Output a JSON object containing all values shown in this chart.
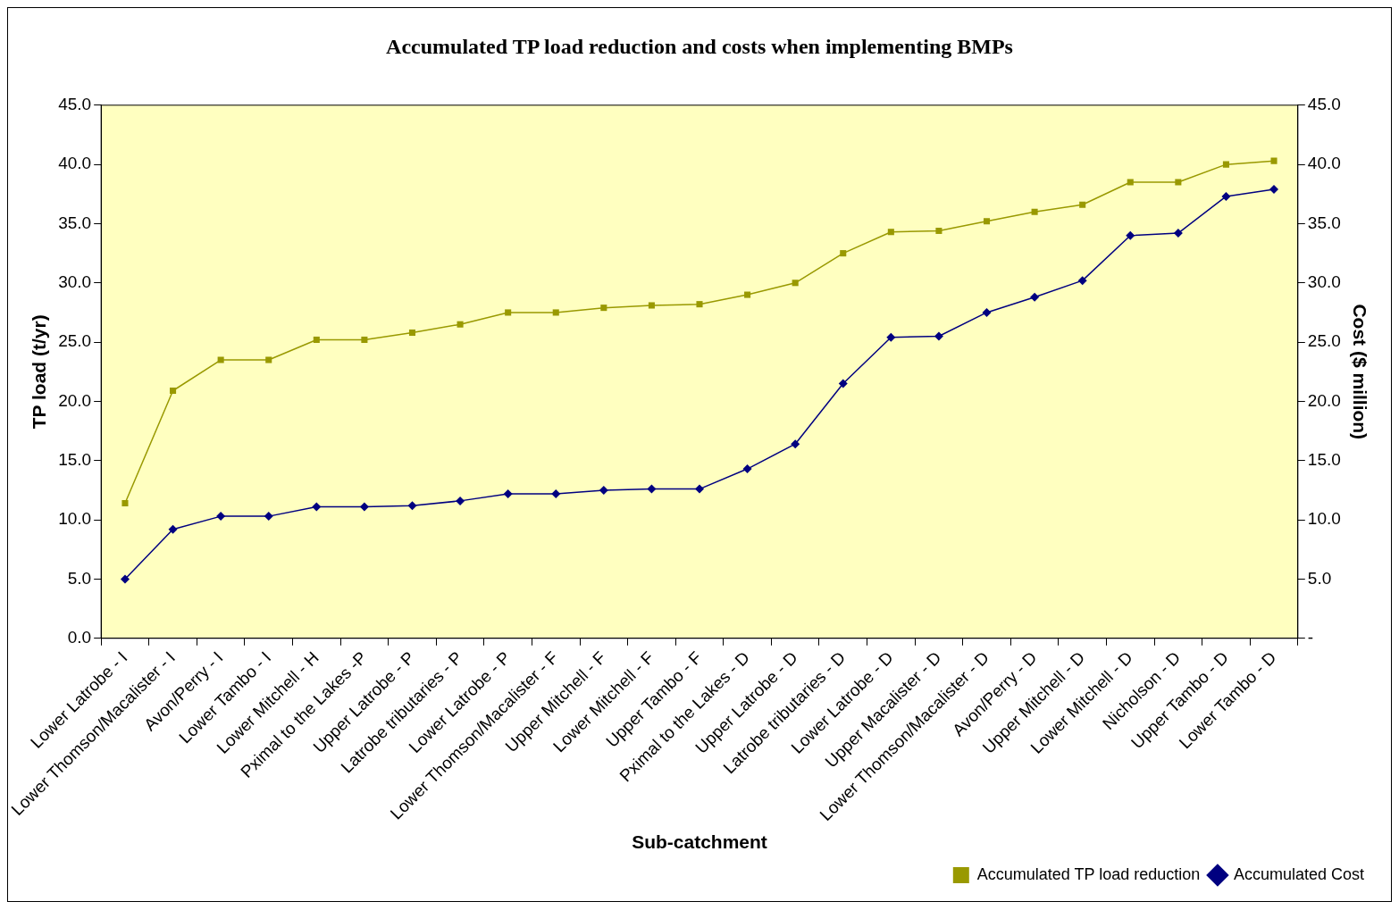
{
  "chart_data": {
    "type": "line",
    "title": "Accumulated TP load reduction and costs when implementing BMPs",
    "xlabel": "Sub-catchment",
    "ylabel": "TP load (t/yr)",
    "y2label": "Cost ($ million)",
    "categories": [
      "Lower Latrobe - I",
      "Lower Thomson/Macalister - I",
      "Avon/Perry - I",
      "Lower Tambo - I",
      "Lower Mitchell - H",
      "Pximal to the Lakes -P",
      "Upper Latrobe - P",
      "Latrobe tributaries - P",
      "Lower Latrobe - P",
      "Lower Thomson/Macalister - F",
      "Upper Mitchell - F",
      "Lower Mitchell - F",
      "Upper Tambo - F",
      "Pximal to the Lakes - D",
      "Upper Latrobe - D",
      "Latrobe tributaries - D",
      "Lower Latrobe - D",
      "Upper Macalister - D",
      "Lower Thomson/Macalister - D",
      "Avon/Perry - D",
      "Upper Mitchell - D",
      "Lower Mitchell - D",
      "Nicholson - D",
      "Upper Tambo - D",
      "Lower Tambo - D"
    ],
    "series": [
      {
        "name": "Accumulated TP load reduction",
        "color": "#999900",
        "marker": "square",
        "values": [
          11.4,
          20.9,
          23.5,
          23.5,
          25.2,
          25.2,
          25.8,
          26.5,
          27.5,
          27.5,
          27.9,
          28.1,
          28.2,
          29.0,
          30.0,
          32.5,
          34.3,
          34.4,
          35.2,
          36.0,
          36.6,
          38.5,
          38.5,
          40.0,
          40.3
        ]
      },
      {
        "name": "Accumulated Cost",
        "color": "#000080",
        "marker": "diamond",
        "axis": "y2",
        "values": [
          5.0,
          9.2,
          10.3,
          10.3,
          11.1,
          11.1,
          11.2,
          11.6,
          12.2,
          12.2,
          12.5,
          12.6,
          12.6,
          14.3,
          16.4,
          21.5,
          25.4,
          25.5,
          27.5,
          28.8,
          30.2,
          34.0,
          34.2,
          37.3,
          37.9
        ]
      }
    ],
    "ylim": [
      0,
      45
    ],
    "yticks": [
      {
        "value": 0,
        "label": "0.0"
      },
      {
        "value": 5,
        "label": "5.0"
      },
      {
        "value": 10,
        "label": "10.0"
      },
      {
        "value": 15,
        "label": "15.0"
      },
      {
        "value": 20,
        "label": "20.0"
      },
      {
        "value": 25,
        "label": "25.0"
      },
      {
        "value": 30,
        "label": "30.0"
      },
      {
        "value": 35,
        "label": "35.0"
      },
      {
        "value": 40,
        "label": "40.0"
      },
      {
        "value": 45,
        "label": "45.0"
      }
    ],
    "y2lim": [
      0,
      45
    ],
    "y2ticks": [
      {
        "value": 0,
        "label": "-"
      },
      {
        "value": 5,
        "label": "5.0"
      },
      {
        "value": 10,
        "label": "10.0"
      },
      {
        "value": 15,
        "label": "15.0"
      },
      {
        "value": 20,
        "label": "20.0"
      },
      {
        "value": 25,
        "label": "25.0"
      },
      {
        "value": 30,
        "label": "30.0"
      },
      {
        "value": 35,
        "label": "35.0"
      },
      {
        "value": 40,
        "label": "40.0"
      },
      {
        "value": 45,
        "label": "45.0"
      }
    ],
    "grid": false,
    "legend": "bottom right"
  }
}
